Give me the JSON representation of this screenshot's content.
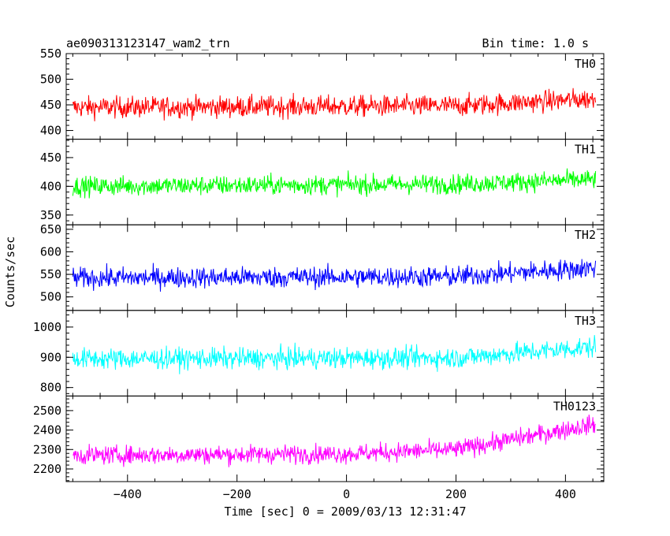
{
  "chart_data": {
    "type": "line",
    "title": "ae090313123147_wam2_trn",
    "bin_label": "Bin time: 1.0 s",
    "xlabel": "Time [sec] 0 = 2009/03/13 12:31:47",
    "ylabel": "Counts/sec",
    "xlim": [
      -512,
      470
    ],
    "x_range": [
      -500,
      455
    ],
    "x_ticks": [
      -400,
      -200,
      0,
      200,
      400
    ],
    "grid": false,
    "panels": [
      {
        "name": "TH0",
        "color": "#ff0000",
        "ylim": [
          383,
          550
        ],
        "yticks": [
          400,
          450,
          500,
          550
        ],
        "profile": [
          {
            "x": -500,
            "y": 445
          },
          {
            "x": 200,
            "y": 448
          },
          {
            "x": 455,
            "y": 462
          }
        ],
        "noise": 27,
        "max": 550,
        "min": 383
      },
      {
        "name": "TH1",
        "color": "#00ff00",
        "ylim": [
          333,
          482
        ],
        "yticks": [
          350,
          400,
          450
        ],
        "profile": [
          {
            "x": -500,
            "y": 400
          },
          {
            "x": 200,
            "y": 404
          },
          {
            "x": 455,
            "y": 412
          }
        ],
        "noise": 22,
        "max": 482,
        "min": 333
      },
      {
        "name": "TH2",
        "color": "#0000ff",
        "ylim": [
          470,
          660
        ],
        "yticks": [
          500,
          550,
          600,
          650
        ],
        "profile": [
          {
            "x": -500,
            "y": 542
          },
          {
            "x": 200,
            "y": 545
          },
          {
            "x": 455,
            "y": 565
          }
        ],
        "noise": 30,
        "max": 660,
        "min": 472
      },
      {
        "name": "TH3",
        "color": "#00ffff",
        "ylim": [
          772,
          1055
        ],
        "yticks": [
          800,
          900,
          1000
        ],
        "profile": [
          {
            "x": -500,
            "y": 895
          },
          {
            "x": 200,
            "y": 898
          },
          {
            "x": 455,
            "y": 935
          }
        ],
        "noise": 45,
        "max": 1050,
        "min": 775
      },
      {
        "name": "TH0123",
        "color": "#ff00ff",
        "ylim": [
          2135,
          2575
        ],
        "yticks": [
          2200,
          2300,
          2400,
          2500
        ],
        "profile": [
          {
            "x": -500,
            "y": 2270
          },
          {
            "x": 0,
            "y": 2278
          },
          {
            "x": 200,
            "y": 2300
          },
          {
            "x": 455,
            "y": 2430
          }
        ],
        "noise": 62,
        "max": 2570,
        "min": 2140
      }
    ]
  }
}
